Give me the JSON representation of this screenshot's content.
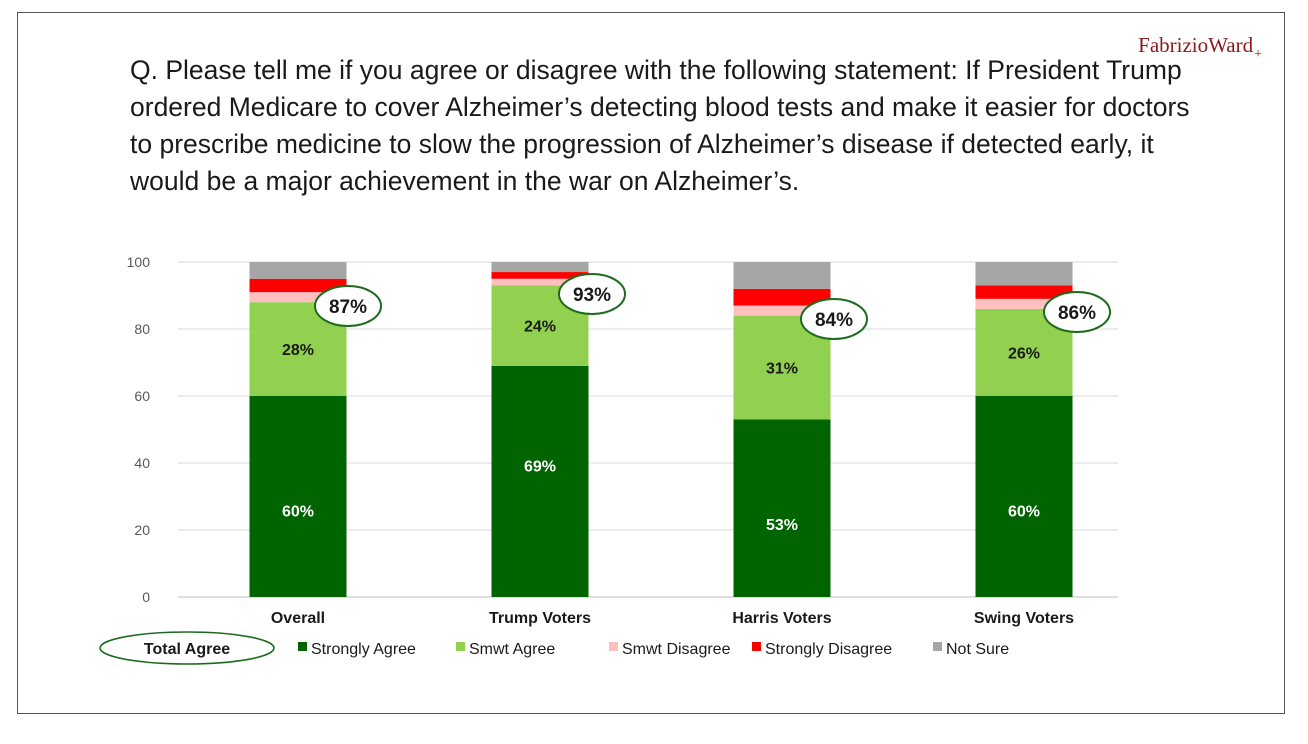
{
  "brand": {
    "name": "FabrizioWard",
    "mark": "+",
    "color": "#8b1a1a"
  },
  "question": "Q. Please tell me if you agree or disagree with the following statement: If President Trump ordered Medicare to cover Alzheimer’s detecting blood tests and make it easier for doctors to prescribe medicine to slow the progression of Alzheimer’s disease if detected early, it would be a major achievement in the war on Alzheimer’s.",
  "chart_data": {
    "type": "bar",
    "stacked": true,
    "categories": [
      "Overall",
      "Trump Voters",
      "Harris Voters",
      "Swing Voters"
    ],
    "ylim": [
      0,
      100
    ],
    "yticks": [
      0,
      20,
      40,
      60,
      80,
      100
    ],
    "grid": true,
    "series": [
      {
        "name": "Strongly Agree",
        "color": "#006400",
        "values": [
          60,
          69,
          53,
          60
        ],
        "labels": [
          "60%",
          "69%",
          "53%",
          "60%"
        ],
        "label_color": "#ffffff"
      },
      {
        "name": "Smwt Agree",
        "color": "#92d050",
        "values": [
          28,
          24,
          31,
          26
        ],
        "labels": [
          "28%",
          "24%",
          "31%",
          "26%"
        ],
        "label_color": "#1a1a1a"
      },
      {
        "name": "Smwt Disagree",
        "color": "#ffc0c0",
        "values": [
          3,
          2,
          3,
          3
        ],
        "labels": null
      },
      {
        "name": "Strongly Disagree",
        "color": "#ff0000",
        "values": [
          4,
          2,
          5,
          4
        ],
        "labels": null
      },
      {
        "name": "Not Sure",
        "color": "#a6a6a6",
        "values": [
          5,
          3,
          8,
          7
        ],
        "labels": null
      }
    ],
    "total_agree": {
      "name": "Total Agree",
      "values": [
        "87%",
        "93%",
        "84%",
        "86%"
      ],
      "ring_color": "#1e6b1e"
    },
    "legend_position": "bottom"
  }
}
